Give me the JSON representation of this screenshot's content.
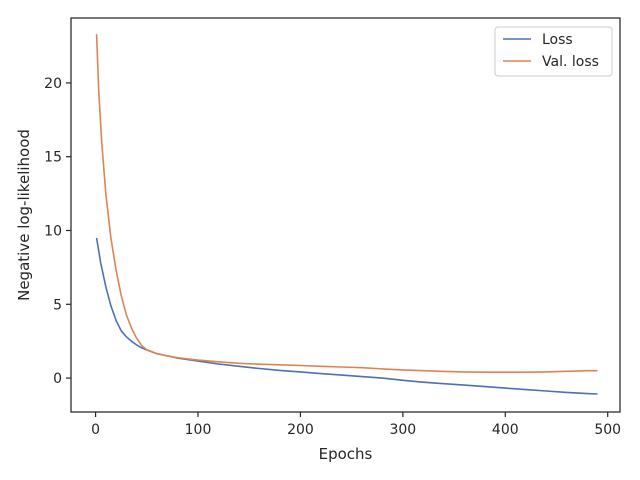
{
  "chart_data": {
    "type": "line",
    "title": "",
    "xlabel": "Epochs",
    "ylabel": "Negative log-likelihood",
    "xlim": [
      -24,
      512
    ],
    "ylim": [
      -2.3,
      24.4
    ],
    "xticks": [
      0,
      100,
      200,
      300,
      400,
      500
    ],
    "yticks": [
      0,
      5,
      10,
      15,
      20
    ],
    "grid": false,
    "legend": {
      "placement": "top-right"
    },
    "series": [
      {
        "name": "Loss",
        "color": "#4c72b0",
        "x": [
          1,
          5,
          10,
          15,
          20,
          25,
          30,
          35,
          40,
          45,
          50,
          60,
          70,
          80,
          90,
          100,
          120,
          140,
          160,
          180,
          200,
          220,
          240,
          260,
          280,
          300,
          320,
          340,
          360,
          380,
          400,
          420,
          440,
          460,
          480,
          490
        ],
        "y": [
          9.5,
          7.8,
          6.2,
          4.9,
          3.9,
          3.2,
          2.8,
          2.5,
          2.25,
          2.05,
          1.9,
          1.65,
          1.5,
          1.35,
          1.25,
          1.15,
          0.95,
          0.8,
          0.65,
          0.52,
          0.42,
          0.3,
          0.2,
          0.1,
          0.0,
          -0.15,
          -0.28,
          -0.38,
          -0.48,
          -0.58,
          -0.68,
          -0.78,
          -0.88,
          -0.97,
          -1.05,
          -1.08
        ]
      },
      {
        "name": "Val. loss",
        "color": "#dd8452",
        "x": [
          1,
          3,
          6,
          10,
          15,
          20,
          25,
          30,
          35,
          40,
          45,
          50,
          60,
          70,
          80,
          90,
          100,
          120,
          140,
          160,
          180,
          200,
          220,
          240,
          260,
          280,
          300,
          320,
          340,
          360,
          380,
          400,
          420,
          440,
          460,
          480,
          490
        ],
        "y": [
          23.3,
          19.5,
          16.0,
          12.5,
          9.5,
          7.3,
          5.6,
          4.3,
          3.4,
          2.7,
          2.2,
          1.92,
          1.66,
          1.5,
          1.38,
          1.3,
          1.22,
          1.1,
          1.0,
          0.94,
          0.9,
          0.85,
          0.8,
          0.75,
          0.7,
          0.62,
          0.55,
          0.5,
          0.45,
          0.42,
          0.4,
          0.4,
          0.4,
          0.42,
          0.46,
          0.5,
          0.5
        ]
      }
    ]
  }
}
